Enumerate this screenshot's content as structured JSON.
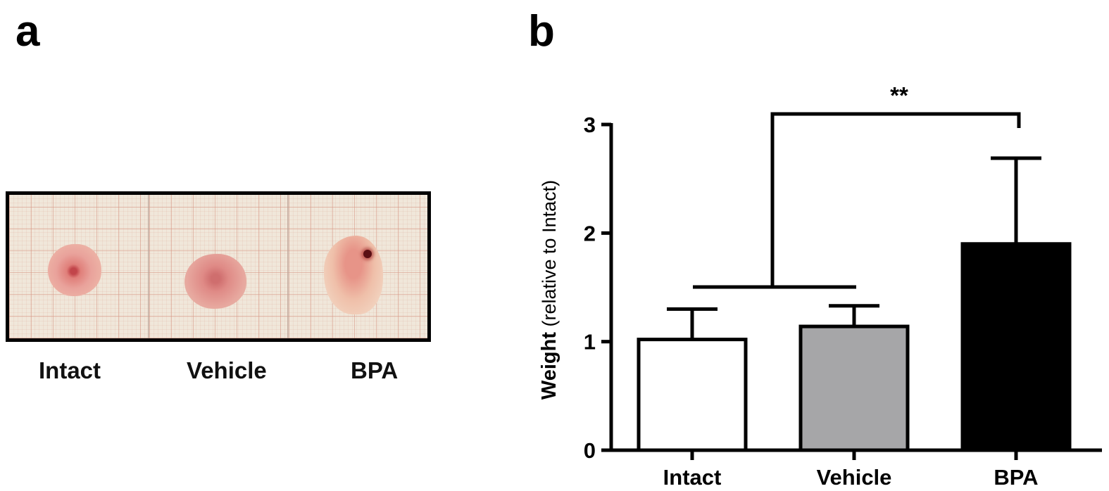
{
  "panel_a": {
    "label": "a",
    "captions": [
      "Intact",
      "Vehicle",
      "BPA"
    ]
  },
  "panel_b": {
    "label": "b"
  },
  "colors": {
    "intact_bar": "#ffffff",
    "vehicle_bar": "#a6a6a8",
    "bpa_bar": "#000000",
    "axis": "#000000"
  },
  "chart_data": {
    "type": "bar",
    "categories": [
      "Intact",
      "Vehicle",
      "BPA"
    ],
    "values": [
      1.02,
      1.14,
      1.9
    ],
    "error_upper": [
      1.3,
      1.33,
      2.69
    ],
    "ylim": [
      0,
      3
    ],
    "yticks": [
      "0",
      "1",
      "2",
      "3"
    ],
    "ylabel_bold": "Weight",
    "ylabel_rest": " (relative to Intact)",
    "xlabel": "",
    "grid": false,
    "significance": {
      "label": "**",
      "left_group": [
        "Intact",
        "Vehicle"
      ],
      "right_group": [
        "BPA"
      ]
    }
  }
}
